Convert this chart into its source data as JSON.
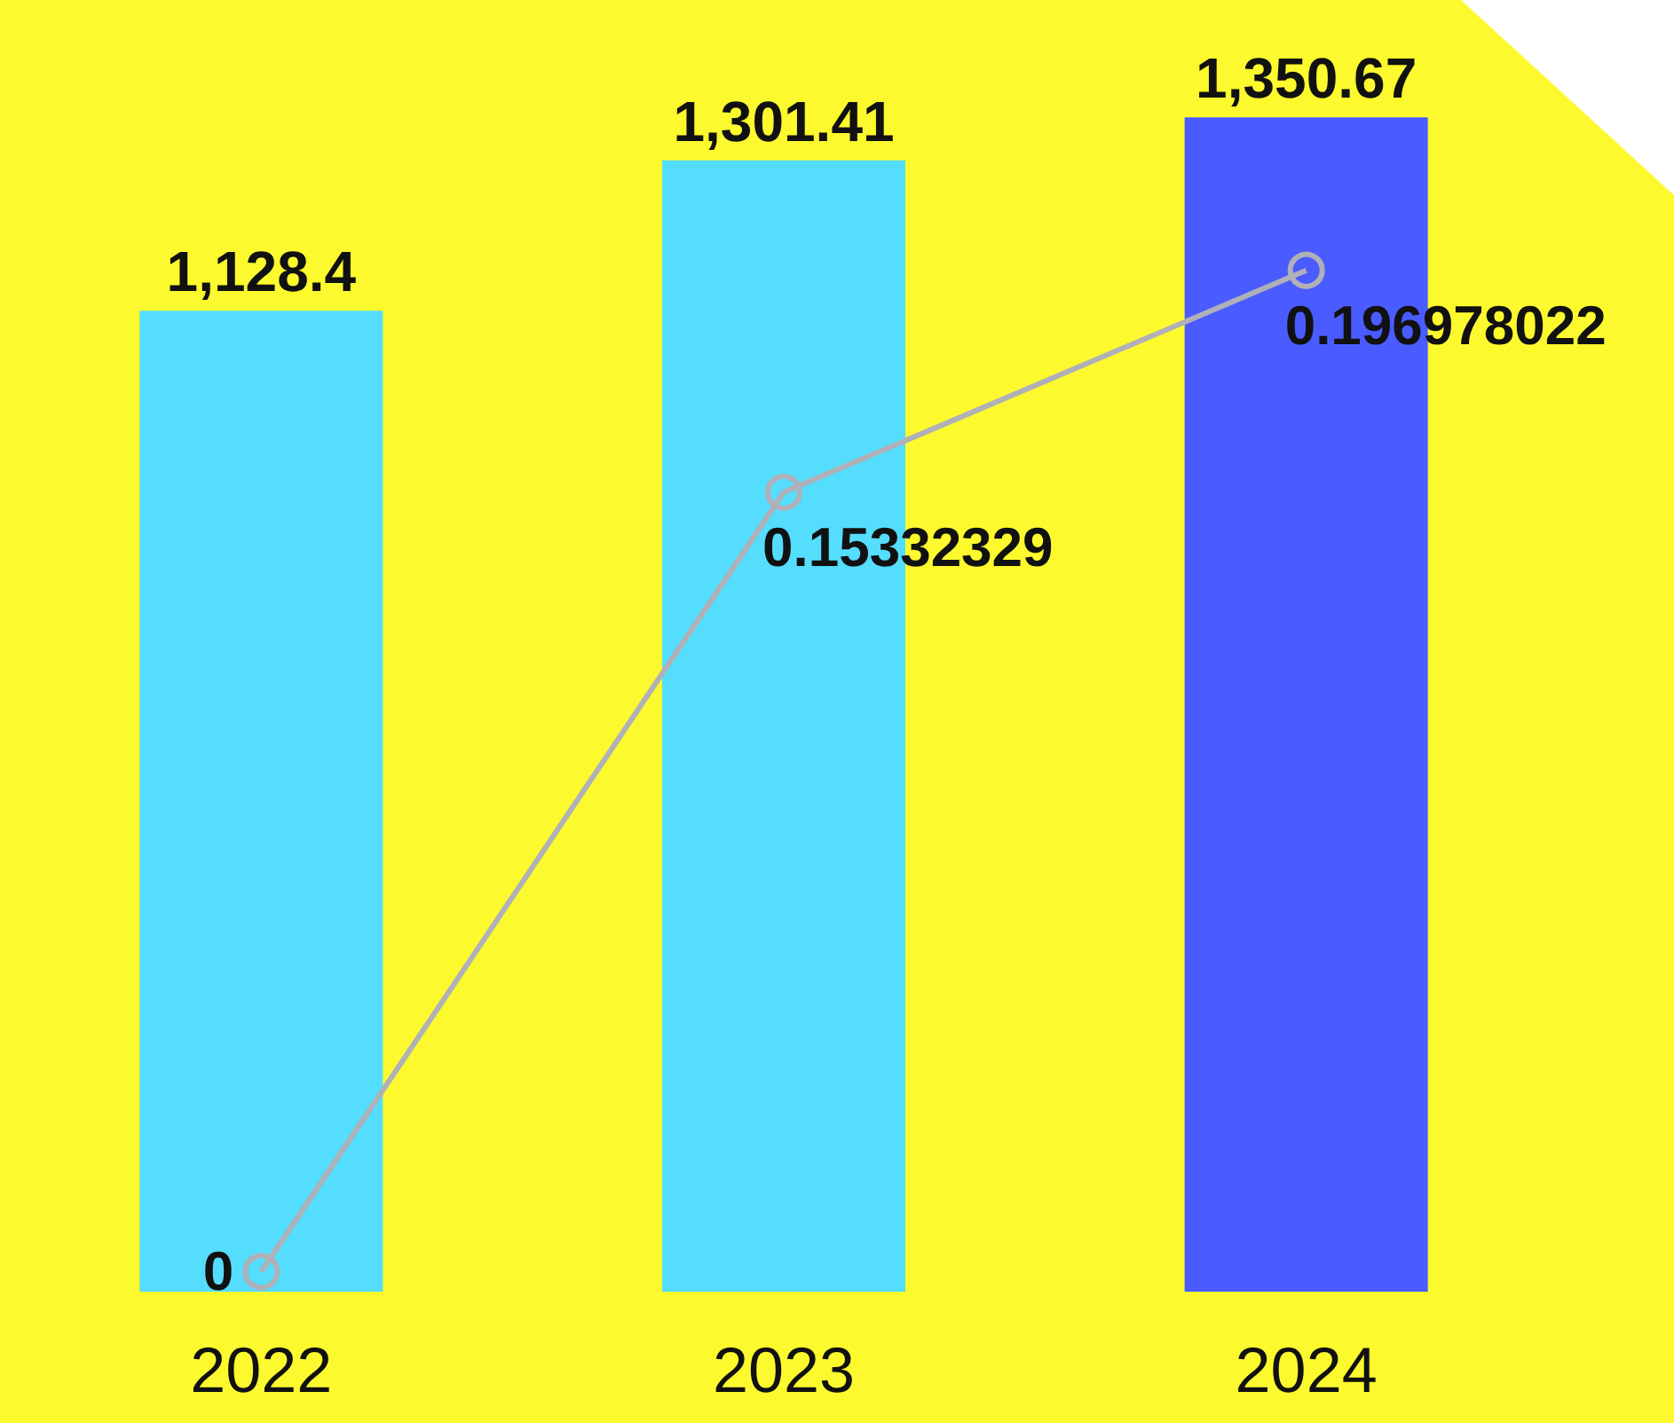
{
  "chart_data": {
    "type": "bar",
    "categories": [
      "2022",
      "2023",
      "2024"
    ],
    "series": [
      {
        "colors": [
          "#55ddfd",
          "#55ddfd",
          "#4a5cff"
        ],
        "values": [
          1128.4,
          1301.41,
          1350.67
        ],
        "value_labels": [
          "1,128.4",
          "1,301.41",
          "1,350.67"
        ]
      },
      {
        "type": "line",
        "axis": "y2",
        "color": "#b0b0b8",
        "marker": "circle",
        "values": [
          0,
          0.15332329,
          0.196978022
        ]
      }
    ],
    "tick_labels": "x",
    "data_labels": true
  }
}
